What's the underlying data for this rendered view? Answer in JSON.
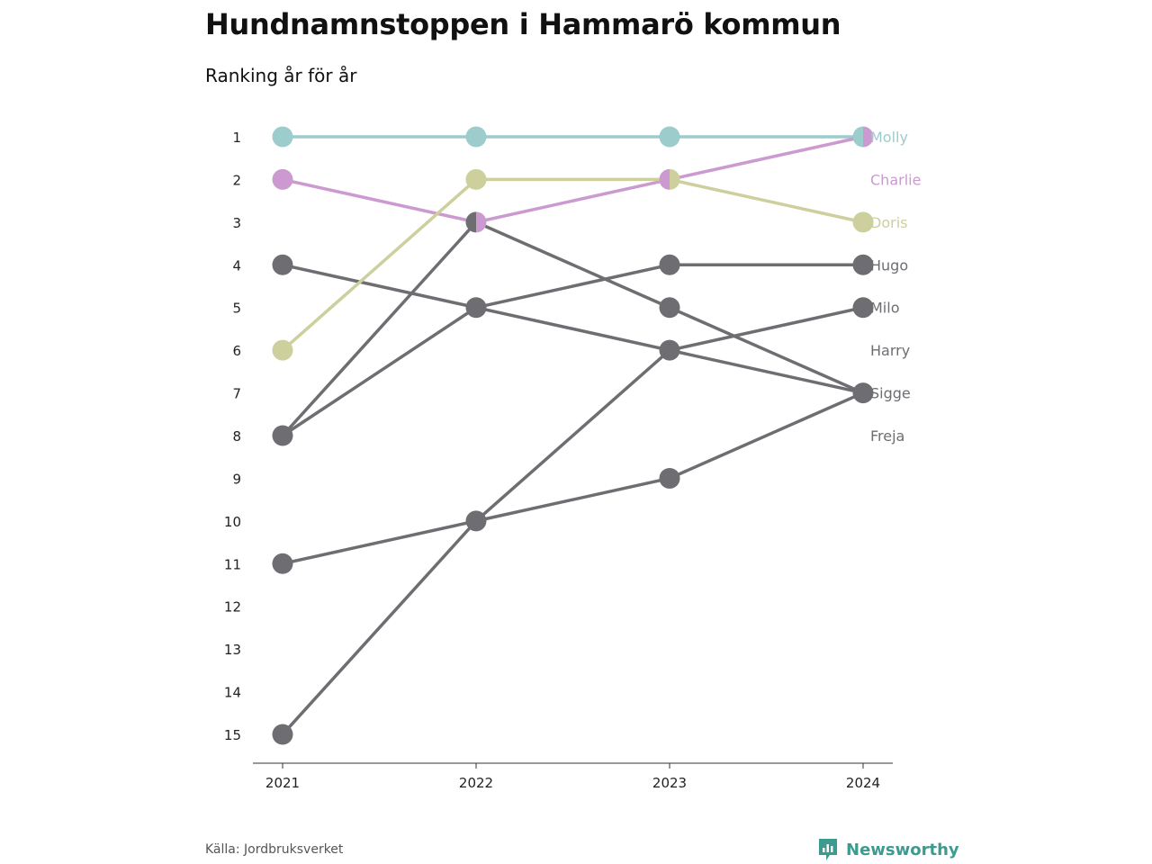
{
  "title": "Hundnamnstoppen i Hammarö kommun",
  "subtitle": "Ranking år för år",
  "source": "Källa: Jordbruksverket",
  "brand": {
    "name": "Newsworthy",
    "icon": "newsworthy-logo-icon",
    "color": "#3d9a8f"
  },
  "chart_data": {
    "type": "line",
    "title": "Hundnamnstoppen i Hammarö kommun",
    "subtitle": "Ranking år för år",
    "x": [
      "2021",
      "2022",
      "2023",
      "2024"
    ],
    "y_ticks": [
      1,
      2,
      3,
      4,
      5,
      6,
      7,
      8,
      9,
      10,
      11,
      12,
      13,
      14,
      15
    ],
    "ylim": [
      1,
      15
    ],
    "y_reversed": true,
    "grid": false,
    "end_labels": [
      "Molly",
      "Charlie",
      "Doris",
      "Hugo",
      "Milo",
      "Harry",
      "Sigge",
      "Freja"
    ],
    "series": [
      {
        "name": "Molly",
        "values": [
          1,
          1,
          1,
          1
        ],
        "color": "#9ccccb"
      },
      {
        "name": "Charlie",
        "values": [
          2,
          3,
          2,
          1
        ],
        "color": "#cc9ad0"
      },
      {
        "name": "Doris",
        "values": [
          6,
          2,
          2,
          3
        ],
        "color": "#cdcf9d"
      },
      {
        "name": "Hugo",
        "values": [
          8,
          5,
          4,
          4
        ],
        "color": "#6e6d72"
      },
      {
        "name": "Milo",
        "values": [
          15,
          10,
          6,
          5
        ],
        "color": "#6e6d72"
      },
      {
        "name": "Harry",
        "values": [
          4,
          5,
          6,
          7
        ],
        "color": "#6e6d72"
      },
      {
        "name": "Sigge",
        "values": [
          8,
          3,
          5,
          7
        ],
        "color": "#6e6d72"
      },
      {
        "name": "Freja",
        "values": [
          11,
          10,
          9,
          7
        ],
        "color": "#6e6d72"
      }
    ]
  }
}
